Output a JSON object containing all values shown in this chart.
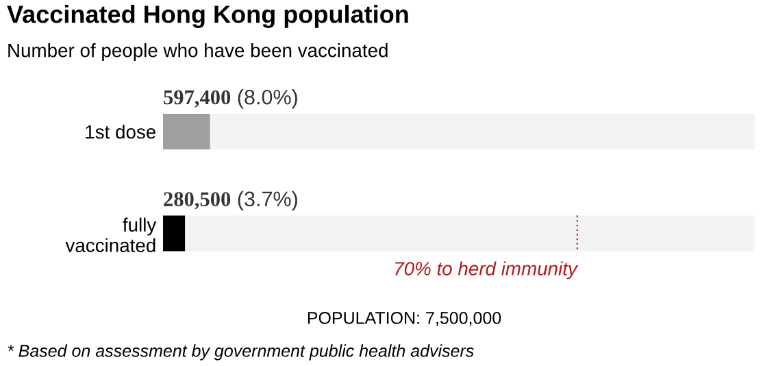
{
  "chart_data": {
    "type": "bar",
    "orientation": "horizontal",
    "stacked": true,
    "title": "Vaccinated Hong Kong population",
    "subtitle": "Number of people who have been vaccinated",
    "categories": [
      "1st dose",
      "fully\nvaccinated"
    ],
    "series": [
      {
        "colors": [
          "#a0a0a0",
          "#000000"
        ],
        "values": [
          597400,
          280500
        ],
        "value_labels": [
          "597,400 (8.0%)",
          "280,500 (3.7%)"
        ]
      },
      {
        "color": "#f3f3f3",
        "values": [
          6902600,
          7219500
        ]
      }
    ],
    "xlim": [
      0,
      7500000
    ],
    "tick_labels": "y",
    "grid": false,
    "legend": false,
    "ref_lines": [
      {
        "axis": "x",
        "value": 5250000,
        "label": "70% to herd immunity",
        "color": "#b01c1c",
        "line_style": "dotted"
      }
    ],
    "annotations": [
      "POPULATION: 7,500,000",
      "* Based on assessment by government public health advisers"
    ]
  }
}
